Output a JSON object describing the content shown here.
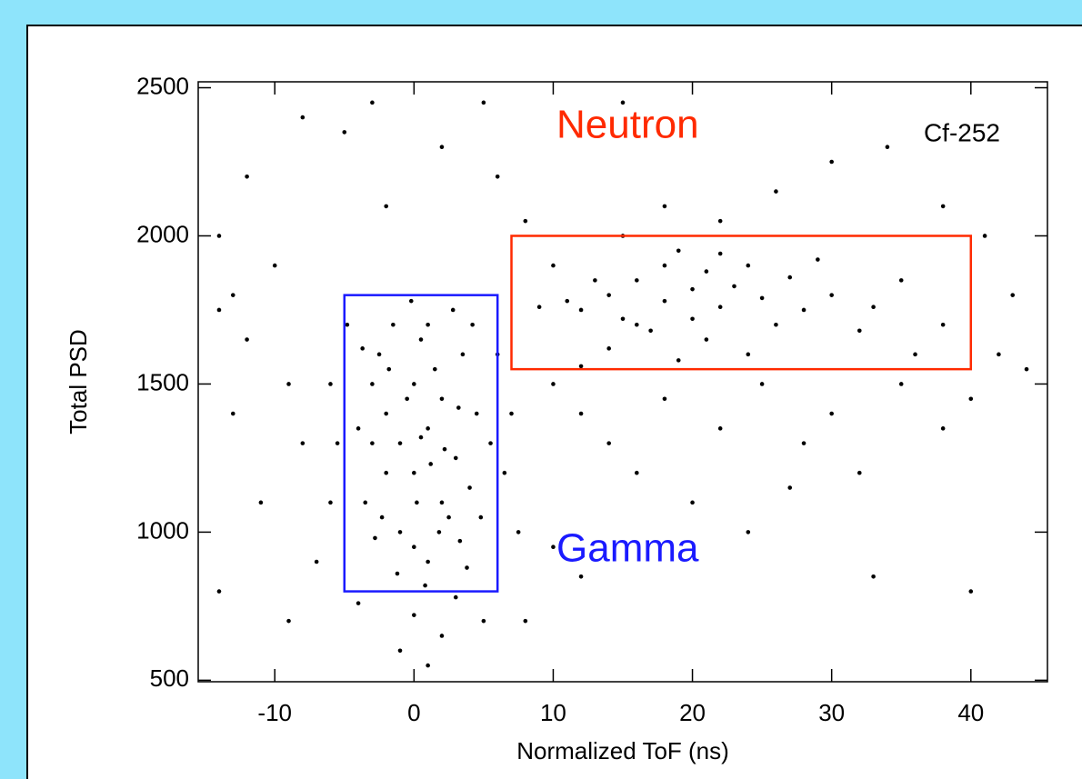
{
  "chart_data": {
    "type": "scatter",
    "x_label": "Normalized ToF (ns)",
    "y_label": "Total PSD",
    "annotation": "Cf-252",
    "xlim": [
      -15.5,
      45.5
    ],
    "ylim": [
      495,
      2520
    ],
    "xticks": [
      -10,
      0,
      10,
      20,
      30,
      40
    ],
    "yticks": [
      500,
      1000,
      1500,
      2000,
      2500
    ],
    "color": "#000000",
    "regions": [
      {
        "label": "Gamma",
        "color": "#1a1aff",
        "xlim": [
          -5,
          6
        ],
        "ylim": [
          800,
          1800
        ]
      },
      {
        "label": "Neutron",
        "color": "#ff2a00",
        "xlim": [
          7,
          40
        ],
        "ylim": [
          1550,
          2000
        ]
      }
    ],
    "x": [
      -3,
      -2,
      -1,
      0,
      1,
      2,
      3,
      4,
      -4,
      -3.5,
      -2.5,
      -1.5,
      0.5,
      1.5,
      2.5,
      3.5,
      4.5,
      -1,
      0,
      1,
      2,
      -2,
      -3,
      0,
      1,
      -0.5,
      0.5,
      2.2,
      3.2,
      -2.8,
      -1.2,
      0.8,
      3.8,
      4.8,
      5.5,
      6.5,
      7,
      -5.5,
      -6,
      -4.8,
      2.8,
      -0.2,
      1.8,
      -1.8,
      0.2,
      1.2,
      -2.3,
      3.3,
      4.2,
      -3.7,
      0,
      2,
      -1,
      1,
      3,
      -4,
      5,
      -6,
      7.5,
      6,
      12,
      14,
      16,
      18,
      20,
      22,
      24,
      26,
      17,
      19,
      21,
      15,
      13,
      23,
      25,
      27,
      11,
      18,
      16,
      20,
      22,
      28,
      30,
      32,
      35,
      38,
      9,
      10,
      14,
      21,
      24,
      29,
      33,
      36,
      18,
      22,
      15,
      26,
      12,
      19,
      -14,
      -13,
      -12,
      -10,
      -9,
      -8,
      -11,
      -7,
      -13,
      -14,
      -12,
      -8,
      -5,
      -2,
      2,
      5,
      6,
      8,
      10,
      12,
      14,
      16,
      18,
      20,
      22,
      25,
      28,
      30,
      32,
      35,
      38,
      40,
      42,
      44,
      43,
      41,
      38,
      34,
      30,
      27,
      24,
      33,
      40,
      10,
      12,
      8,
      -9,
      -14,
      15,
      -3
    ],
    "values": [
      1500,
      1400,
      1300,
      1200,
      1350,
      1450,
      1250,
      1150,
      1350,
      1100,
      1600,
      1700,
      1650,
      1550,
      1050,
      1600,
      1400,
      1000,
      950,
      900,
      1100,
      1200,
      1300,
      1500,
      1700,
      1450,
      1320,
      1280,
      1420,
      980,
      860,
      820,
      880,
      1050,
      1300,
      1200,
      1400,
      1300,
      1500,
      1700,
      1750,
      1780,
      1000,
      1550,
      1100,
      1230,
      1050,
      970,
      1700,
      1620,
      720,
      650,
      600,
      550,
      780,
      760,
      700,
      1100,
      1000,
      1600,
      1750,
      1800,
      1850,
      1780,
      1820,
      1760,
      1900,
      1700,
      1680,
      1950,
      1880,
      1720,
      1850,
      1830,
      1790,
      1860,
      1780,
      1900,
      1700,
      1720,
      1940,
      1750,
      1800,
      1680,
      1850,
      1700,
      1760,
      1900,
      1620,
      1650,
      1600,
      1920,
      1760,
      1600,
      2100,
      2050,
      2000,
      2150,
      1560,
      1580,
      1750,
      1800,
      1650,
      1900,
      1500,
      1300,
      1100,
      900,
      1400,
      2000,
      2200,
      2400,
      2350,
      2100,
      2300,
      2450,
      2200,
      2050,
      1500,
      1400,
      1300,
      1200,
      1450,
      1100,
      1350,
      1500,
      1300,
      1400,
      1200,
      1500,
      1350,
      1450,
      1600,
      1550,
      1800,
      2000,
      2100,
      2300,
      2250,
      1150,
      1000,
      850,
      800,
      950,
      850,
      700,
      700,
      800,
      2450,
      2450
    ]
  }
}
